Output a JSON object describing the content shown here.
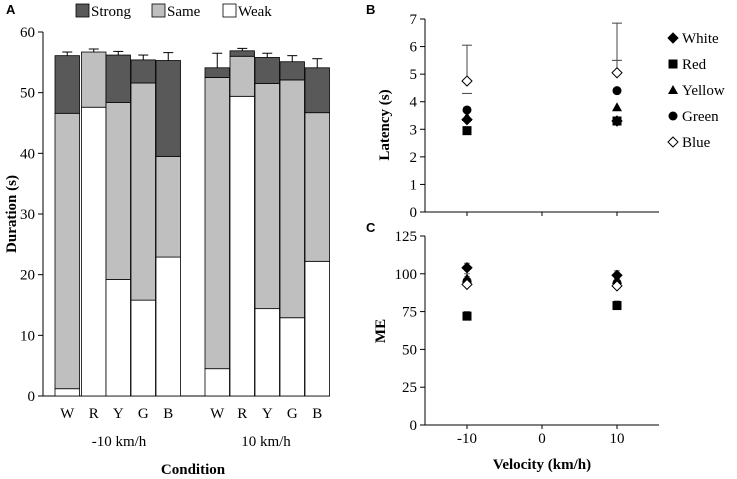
{
  "chart_data": [
    {
      "panel": "A",
      "type": "bar",
      "stacked": true,
      "title": "",
      "xlabel": "Condition",
      "ylabel": "Duration (s)",
      "ylim": [
        0,
        60
      ],
      "yticks": [
        0,
        10,
        20,
        30,
        40,
        50,
        60
      ],
      "legend_position": "top",
      "groups": [
        {
          "label": "-10 km/h",
          "categories": [
            "W",
            "R",
            "Y",
            "G",
            "B"
          ]
        },
        {
          "label": "10 km/h",
          "categories": [
            "W",
            "R",
            "Y",
            "G",
            "B"
          ]
        }
      ],
      "series": [
        {
          "name": "Weak",
          "color": "#ffffff",
          "values": [
            1.2,
            47.6,
            19.2,
            15.8,
            22.9,
            4.5,
            49.4,
            14.4,
            12.9,
            22.2
          ]
        },
        {
          "name": "Same",
          "color": "#bfbfbf",
          "values": [
            45.4,
            9.1,
            29.2,
            35.8,
            16.6,
            48.0,
            6.6,
            37.1,
            39.2,
            24.5
          ]
        },
        {
          "name": "Strong",
          "color": "#595959",
          "values": [
            9.5,
            0.0,
            7.8,
            3.8,
            15.8,
            1.6,
            0.9,
            4.3,
            3.0,
            7.4
          ]
        }
      ],
      "error_upper": [
        0.6,
        0.5,
        0.6,
        0.8,
        1.3,
        2.4,
        0.4,
        0.7,
        1.0,
        1.5
      ],
      "legend_order": [
        "Strong",
        "Same",
        "Weak"
      ]
    },
    {
      "panel": "B",
      "type": "scatter",
      "xlabel": "",
      "ylabel": "Latency (s)",
      "ylim": [
        0,
        7
      ],
      "yticks": [
        0,
        1,
        2,
        3,
        4,
        5,
        6,
        7
      ],
      "xlim": [
        -15,
        15
      ],
      "series": [
        {
          "name": "White",
          "marker": "diamond-filled",
          "x": [
            -10,
            10
          ],
          "y": [
            3.35,
            3.3
          ]
        },
        {
          "name": "Red",
          "marker": "square-filled",
          "x": [
            -10,
            10
          ],
          "y": [
            2.95,
            3.3
          ]
        },
        {
          "name": "Yellow",
          "marker": "triangle-filled",
          "x": [
            -10,
            10
          ],
          "y": [
            3.45,
            3.8
          ]
        },
        {
          "name": "Green",
          "marker": "circle-filled",
          "x": [
            -10,
            10
          ],
          "y": [
            3.7,
            4.4
          ]
        },
        {
          "name": "Blue",
          "marker": "diamond-open",
          "x": [
            -10,
            10
          ],
          "y": [
            4.75,
            5.05
          ],
          "error_upper": [
            1.3,
            1.8
          ]
        }
      ],
      "extra_error_caps": [
        {
          "x": 10,
          "y": 5.5
        },
        {
          "x": -10,
          "y": 4.3
        }
      ]
    },
    {
      "panel": "C",
      "type": "scatter",
      "xlabel": "Velocity (km/h)",
      "ylabel": "ME",
      "ylim": [
        0,
        125
      ],
      "yticks": [
        0,
        25,
        50,
        75,
        100,
        125
      ],
      "xlim": [
        -15,
        15
      ],
      "xticks": [
        -10,
        0,
        10
      ],
      "series": [
        {
          "name": "White",
          "marker": "diamond-filled",
          "x": [
            -10,
            10
          ],
          "y": [
            104,
            99
          ]
        },
        {
          "name": "Red",
          "marker": "square-filled",
          "x": [
            -10,
            10
          ],
          "y": [
            72,
            79
          ]
        },
        {
          "name": "Yellow",
          "marker": "triangle-filled",
          "x": [
            -10,
            10
          ],
          "y": [
            97,
            96
          ]
        },
        {
          "name": "Green",
          "marker": "circle-filled",
          "x": [
            -10,
            10
          ],
          "y": [
            95,
            94
          ]
        },
        {
          "name": "Blue",
          "marker": "diamond-open",
          "x": [
            -10,
            10
          ],
          "y": [
            93,
            92
          ]
        }
      ]
    }
  ],
  "panels": {
    "a": "A",
    "b": "B",
    "c": "C"
  },
  "legend_bc": [
    "White",
    "Red",
    "Yellow",
    "Green",
    "Blue"
  ]
}
